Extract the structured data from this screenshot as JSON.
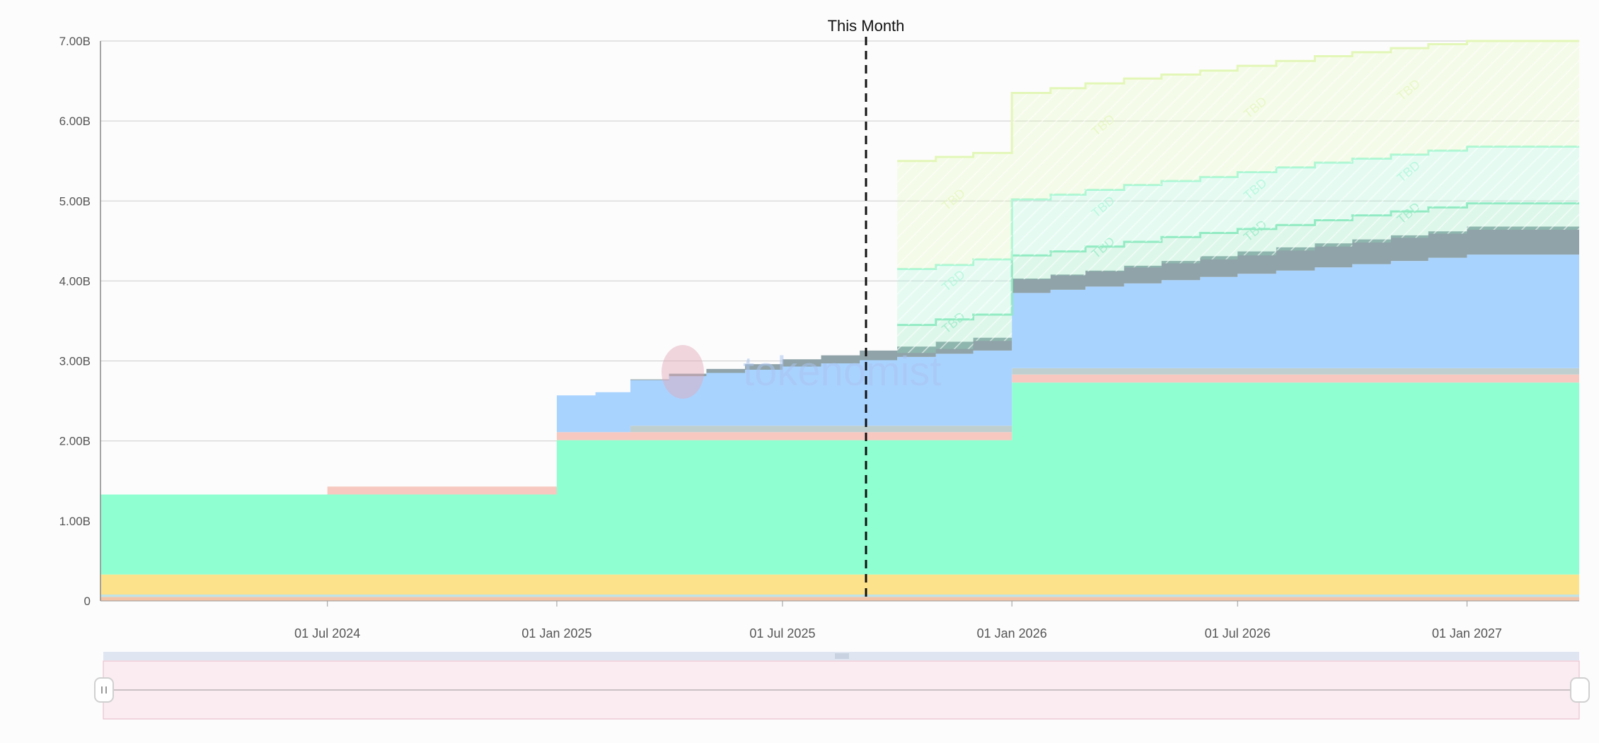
{
  "chart_data": {
    "type": "area",
    "stacked": true,
    "step": true,
    "x_range": [
      "2024-01-01",
      "2027-04-01"
    ],
    "ylim": [
      0,
      7000000000
    ],
    "y_ticks": [
      {
        "value": 0,
        "label": "0"
      },
      {
        "value": 1000000000,
        "label": "1.00B"
      },
      {
        "value": 2000000000,
        "label": "2.00B"
      },
      {
        "value": 3000000000,
        "label": "3.00B"
      },
      {
        "value": 4000000000,
        "label": "4.00B"
      },
      {
        "value": 5000000000,
        "label": "5.00B"
      },
      {
        "value": 6000000000,
        "label": "6.00B"
      },
      {
        "value": 7000000000,
        "label": "7.00B"
      }
    ],
    "x_ticks": [
      {
        "date": "2024-07-01",
        "label": "01 Jul 2024"
      },
      {
        "date": "2025-01-01",
        "label": "01 Jan 2025"
      },
      {
        "date": "2025-07-01",
        "label": "01 Jul 2025"
      },
      {
        "date": "2026-01-01",
        "label": "01 Jan 2026"
      },
      {
        "date": "2026-07-01",
        "label": "01 Jul 2026"
      },
      {
        "date": "2027-01-01",
        "label": "01 Jan 2027"
      }
    ],
    "grid": true,
    "marker": {
      "date": "2025-09-06",
      "label": "This Month"
    },
    "watermark": "tokenomist",
    "series": [
      {
        "color": "#f3c4a8",
        "points": [
          [
            "2024-01-01",
            50000000.0
          ],
          [
            "2027-04-01",
            50000000.0
          ]
        ]
      },
      {
        "color": "#bfe3e6",
        "points": [
          [
            "2024-01-01",
            30000000.0
          ],
          [
            "2027-04-01",
            30000000.0
          ]
        ]
      },
      {
        "color": "#fde28c",
        "points": [
          [
            "2024-01-01",
            250000000.0
          ],
          [
            "2027-04-01",
            250000000.0
          ]
        ]
      },
      {
        "color": "#8fffd2",
        "points": [
          [
            "2024-01-01",
            1000000000.0
          ],
          [
            "2025-01-01",
            1680000000.0
          ],
          [
            "2026-01-01",
            2400000000.0
          ],
          [
            "2027-04-01",
            2400000000.0
          ]
        ]
      },
      {
        "color": "#f7c8c0",
        "points": [
          [
            "2024-01-01",
            0
          ],
          [
            "2024-07-01",
            100000000.0
          ],
          [
            "2025-01-01",
            100000000.0
          ],
          [
            "2026-01-01",
            100000000.0
          ],
          [
            "2027-04-01",
            100000000.0
          ]
        ]
      },
      {
        "color": "#bfcfcf",
        "points": [
          [
            "2024-01-01",
            0
          ],
          [
            "2025-03-01",
            80000000.0
          ],
          [
            "2026-01-01",
            80000000.0
          ],
          [
            "2027-04-01",
            80000000.0
          ]
        ]
      },
      {
        "color": "#a9d3ff",
        "points": [
          [
            "2024-01-01",
            0
          ],
          [
            "2025-01-01",
            460000000.0
          ],
          [
            "2025-02-01",
            500000000.0
          ],
          [
            "2025-03-01",
            570000000.0
          ],
          [
            "2025-04-01",
            620000000.0
          ],
          [
            "2025-05-01",
            660000000.0
          ],
          [
            "2025-06-01",
            700000000.0
          ],
          [
            "2025-07-01",
            740000000.0
          ],
          [
            "2025-08-01",
            780000000.0
          ],
          [
            "2025-09-01",
            820000000.0
          ],
          [
            "2025-10-01",
            860000000.0
          ],
          [
            "2025-11-01",
            900000000.0
          ],
          [
            "2025-12-01",
            940000000.0
          ],
          [
            "2026-01-01",
            940000000.0
          ],
          [
            "2026-02-01",
            980000000.0
          ],
          [
            "2026-03-01",
            1020000000.0
          ],
          [
            "2026-04-01",
            1060000000.0
          ],
          [
            "2026-05-01",
            1100000000.0
          ],
          [
            "2026-06-01",
            1140000000.0
          ],
          [
            "2026-07-01",
            1180000000.0
          ],
          [
            "2026-08-01",
            1220000000.0
          ],
          [
            "2026-09-01",
            1260000000.0
          ],
          [
            "2026-10-01",
            1300000000.0
          ],
          [
            "2026-11-01",
            1340000000.0
          ],
          [
            "2026-12-01",
            1380000000.0
          ],
          [
            "2027-01-01",
            1420000000.0
          ],
          [
            "2027-04-01",
            1420000000.0
          ]
        ]
      },
      {
        "color": "#8fa3a8",
        "points": [
          [
            "2024-01-01",
            0
          ],
          [
            "2025-03-01",
            10000000.0
          ],
          [
            "2025-04-01",
            30000000.0
          ],
          [
            "2025-05-01",
            50000000.0
          ],
          [
            "2025-06-01",
            70000000.0
          ],
          [
            "2025-07-01",
            90000000.0
          ],
          [
            "2025-08-01",
            100000000.0
          ],
          [
            "2025-09-01",
            120000000.0
          ],
          [
            "2025-10-01",
            130000000.0
          ],
          [
            "2025-11-01",
            150000000.0
          ],
          [
            "2025-12-01",
            160000000.0
          ],
          [
            "2026-01-01",
            180000000.0
          ],
          [
            "2026-02-01",
            190000000.0
          ],
          [
            "2026-03-01",
            200000000.0
          ],
          [
            "2026-04-01",
            220000000.0
          ],
          [
            "2026-05-01",
            240000000.0
          ],
          [
            "2026-06-01",
            260000000.0
          ],
          [
            "2026-07-01",
            280000000.0
          ],
          [
            "2026-08-01",
            290000000.0
          ],
          [
            "2026-09-01",
            300000000.0
          ],
          [
            "2026-10-01",
            310000000.0
          ],
          [
            "2026-11-01",
            320000000.0
          ],
          [
            "2026-12-01",
            330000000.0
          ],
          [
            "2027-01-01",
            350000000.0
          ],
          [
            "2027-04-01",
            350000000.0
          ]
        ]
      }
    ],
    "projected_bands": [
      {
        "color": "#8fe9c0",
        "label": "TBD",
        "points": [
          [
            "2025-10-01",
            3100000000.0,
            3450000000.0
          ],
          [
            "2025-11-01",
            3150000000.0,
            3520000000.0
          ],
          [
            "2025-12-01",
            3250000000.0,
            3580000000.0
          ],
          [
            "2026-01-01",
            4020000000.0,
            4320000000.0
          ],
          [
            "2026-02-01",
            4070000000.0,
            4370000000.0
          ],
          [
            "2026-03-01",
            4120000000.0,
            4430000000.0
          ],
          [
            "2026-04-01",
            4170000000.0,
            4490000000.0
          ],
          [
            "2026-05-01",
            4220000000.0,
            4550000000.0
          ],
          [
            "2026-06-01",
            4270000000.0,
            4600000000.0
          ],
          [
            "2026-07-01",
            4320000000.0,
            4650000000.0
          ],
          [
            "2026-08-01",
            4380000000.0,
            4700000000.0
          ],
          [
            "2026-09-01",
            4430000000.0,
            4760000000.0
          ],
          [
            "2026-10-01",
            4480000000.0,
            4820000000.0
          ],
          [
            "2026-11-01",
            4540000000.0,
            4870000000.0
          ],
          [
            "2026-12-01",
            4590000000.0,
            4920000000.0
          ],
          [
            "2027-01-01",
            4640000000.0,
            4970000000.0
          ],
          [
            "2027-04-01",
            4670000000.0,
            5000000000.0
          ]
        ]
      },
      {
        "color": "#a8f7d8",
        "label": "TBD",
        "points": [
          [
            "2025-10-01",
            3450000000.0,
            4150000000.0
          ],
          [
            "2025-11-01",
            3520000000.0,
            4200000000.0
          ],
          [
            "2025-12-01",
            3580000000.0,
            4270000000.0
          ],
          [
            "2026-01-01",
            4320000000.0,
            5020000000.0
          ],
          [
            "2026-02-01",
            4370000000.0,
            5080000000.0
          ],
          [
            "2026-03-01",
            4430000000.0,
            5140000000.0
          ],
          [
            "2026-04-01",
            4490000000.0,
            5200000000.0
          ],
          [
            "2026-05-01",
            4550000000.0,
            5250000000.0
          ],
          [
            "2026-06-01",
            4600000000.0,
            5300000000.0
          ],
          [
            "2026-07-01",
            4650000000.0,
            5360000000.0
          ],
          [
            "2026-08-01",
            4700000000.0,
            5420000000.0
          ],
          [
            "2026-09-01",
            4760000000.0,
            5480000000.0
          ],
          [
            "2026-10-01",
            4820000000.0,
            5530000000.0
          ],
          [
            "2026-11-01",
            4870000000.0,
            5580000000.0
          ],
          [
            "2026-12-01",
            4920000000.0,
            5630000000.0
          ],
          [
            "2027-01-01",
            4970000000.0,
            5680000000.0
          ],
          [
            "2027-04-01",
            5000000000.0,
            5680000000.0
          ]
        ]
      },
      {
        "color": "#e3f7b8",
        "label": "TBD",
        "points": [
          [
            "2025-10-01",
            4150000000.0,
            5500000000.0
          ],
          [
            "2025-11-01",
            4200000000.0,
            5550000000.0
          ],
          [
            "2025-12-01",
            4270000000.0,
            5600000000.0
          ],
          [
            "2026-01-01",
            5020000000.0,
            6350000000.0
          ],
          [
            "2026-02-01",
            5080000000.0,
            6410000000.0
          ],
          [
            "2026-03-01",
            5140000000.0,
            6470000000.0
          ],
          [
            "2026-04-01",
            5200000000.0,
            6530000000.0
          ],
          [
            "2026-05-01",
            5250000000.0,
            6580000000.0
          ],
          [
            "2026-06-01",
            5300000000.0,
            6630000000.0
          ],
          [
            "2026-07-01",
            5360000000.0,
            6690000000.0
          ],
          [
            "2026-08-01",
            5420000000.0,
            6750000000.0
          ],
          [
            "2026-09-01",
            5480000000.0,
            6810000000.0
          ],
          [
            "2026-10-01",
            5530000000.0,
            6860000000.0
          ],
          [
            "2026-11-01",
            5580000000.0,
            6910000000.0
          ],
          [
            "2026-12-01",
            5630000000.0,
            6960000000.0
          ],
          [
            "2027-01-01",
            5680000000.0,
            7000000000.0
          ],
          [
            "2027-04-01",
            5680000000.0,
            7000000000.0
          ]
        ]
      }
    ]
  },
  "range_slider": {
    "fill_color": "#fbecf1",
    "border_color": "#e6b9c8"
  }
}
